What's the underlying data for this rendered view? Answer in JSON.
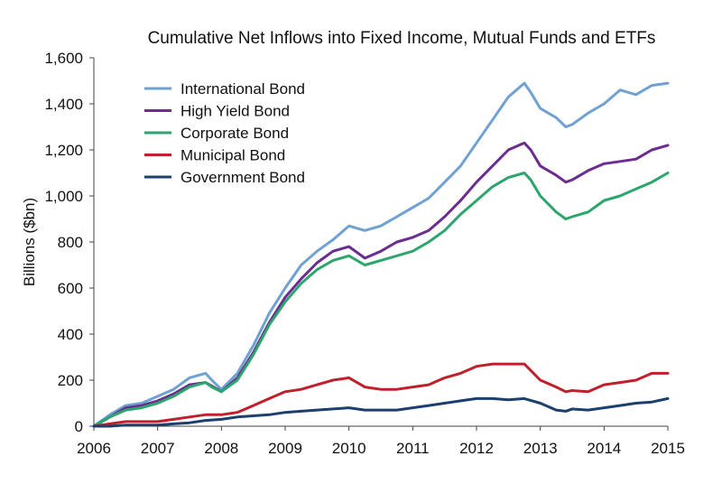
{
  "chart_data": {
    "type": "line",
    "title": "Cumulative Net Inflows into Fixed Income, Mutual Funds and ETFs",
    "xlabel": "",
    "ylabel": "Billions ($bn)",
    "xlim": [
      2006,
      2015
    ],
    "ylim": [
      0,
      1600
    ],
    "x_ticks": [
      2006,
      2007,
      2008,
      2009,
      2010,
      2011,
      2012,
      2013,
      2014,
      2015
    ],
    "y_ticks": [
      0,
      200,
      400,
      600,
      800,
      1000,
      1200,
      1400,
      1600
    ],
    "y_tick_labels": [
      "0",
      "200",
      "400",
      "600",
      "800",
      "1,000",
      "1,200",
      "1,400",
      "1,600"
    ],
    "grid": false,
    "legend_position": "top-left",
    "series": [
      {
        "name": "International Bond",
        "color": "#6fa1d3",
        "points": [
          [
            2006.0,
            0
          ],
          [
            2006.25,
            50
          ],
          [
            2006.5,
            90
          ],
          [
            2006.75,
            100
          ],
          [
            2007.0,
            130
          ],
          [
            2007.25,
            160
          ],
          [
            2007.5,
            210
          ],
          [
            2007.75,
            230
          ],
          [
            2007.85,
            200
          ],
          [
            2008.0,
            160
          ],
          [
            2008.25,
            230
          ],
          [
            2008.5,
            350
          ],
          [
            2008.75,
            490
          ],
          [
            2009.0,
            600
          ],
          [
            2009.25,
            700
          ],
          [
            2009.5,
            760
          ],
          [
            2009.75,
            810
          ],
          [
            2010.0,
            870
          ],
          [
            2010.25,
            850
          ],
          [
            2010.5,
            870
          ],
          [
            2010.75,
            910
          ],
          [
            2011.0,
            950
          ],
          [
            2011.25,
            990
          ],
          [
            2011.5,
            1060
          ],
          [
            2011.75,
            1130
          ],
          [
            2012.0,
            1230
          ],
          [
            2012.25,
            1330
          ],
          [
            2012.5,
            1430
          ],
          [
            2012.75,
            1490
          ],
          [
            2012.85,
            1450
          ],
          [
            2013.0,
            1380
          ],
          [
            2013.25,
            1340
          ],
          [
            2013.4,
            1300
          ],
          [
            2013.5,
            1310
          ],
          [
            2013.75,
            1360
          ],
          [
            2014.0,
            1400
          ],
          [
            2014.25,
            1460
          ],
          [
            2014.5,
            1440
          ],
          [
            2014.75,
            1480
          ],
          [
            2015.0,
            1490
          ]
        ]
      },
      {
        "name": "High Yield Bond",
        "color": "#6b2d8f",
        "points": [
          [
            2006.0,
            0
          ],
          [
            2006.25,
            40
          ],
          [
            2006.5,
            80
          ],
          [
            2006.75,
            90
          ],
          [
            2007.0,
            110
          ],
          [
            2007.25,
            140
          ],
          [
            2007.5,
            180
          ],
          [
            2007.75,
            190
          ],
          [
            2007.85,
            175
          ],
          [
            2008.0,
            150
          ],
          [
            2008.25,
            210
          ],
          [
            2008.5,
            320
          ],
          [
            2008.75,
            450
          ],
          [
            2009.0,
            560
          ],
          [
            2009.25,
            640
          ],
          [
            2009.5,
            710
          ],
          [
            2009.75,
            760
          ],
          [
            2010.0,
            780
          ],
          [
            2010.25,
            730
          ],
          [
            2010.5,
            760
          ],
          [
            2010.75,
            800
          ],
          [
            2011.0,
            820
          ],
          [
            2011.25,
            850
          ],
          [
            2011.5,
            910
          ],
          [
            2011.75,
            980
          ],
          [
            2012.0,
            1060
          ],
          [
            2012.25,
            1130
          ],
          [
            2012.5,
            1200
          ],
          [
            2012.75,
            1230
          ],
          [
            2012.85,
            1200
          ],
          [
            2013.0,
            1130
          ],
          [
            2013.25,
            1090
          ],
          [
            2013.4,
            1060
          ],
          [
            2013.5,
            1070
          ],
          [
            2013.75,
            1110
          ],
          [
            2014.0,
            1140
          ],
          [
            2014.25,
            1150
          ],
          [
            2014.5,
            1160
          ],
          [
            2014.75,
            1200
          ],
          [
            2015.0,
            1220
          ]
        ]
      },
      {
        "name": "Corporate Bond",
        "color": "#2ca66d",
        "points": [
          [
            2006.0,
            0
          ],
          [
            2006.25,
            40
          ],
          [
            2006.5,
            70
          ],
          [
            2006.75,
            80
          ],
          [
            2007.0,
            100
          ],
          [
            2007.25,
            130
          ],
          [
            2007.5,
            170
          ],
          [
            2007.75,
            190
          ],
          [
            2007.85,
            170
          ],
          [
            2008.0,
            150
          ],
          [
            2008.25,
            200
          ],
          [
            2008.5,
            310
          ],
          [
            2008.75,
            440
          ],
          [
            2009.0,
            540
          ],
          [
            2009.25,
            620
          ],
          [
            2009.5,
            680
          ],
          [
            2009.75,
            720
          ],
          [
            2010.0,
            740
          ],
          [
            2010.25,
            700
          ],
          [
            2010.5,
            720
          ],
          [
            2010.75,
            740
          ],
          [
            2011.0,
            760
          ],
          [
            2011.25,
            800
          ],
          [
            2011.5,
            850
          ],
          [
            2011.75,
            920
          ],
          [
            2012.0,
            980
          ],
          [
            2012.25,
            1040
          ],
          [
            2012.5,
            1080
          ],
          [
            2012.75,
            1100
          ],
          [
            2012.85,
            1070
          ],
          [
            2013.0,
            1000
          ],
          [
            2013.25,
            930
          ],
          [
            2013.4,
            900
          ],
          [
            2013.5,
            910
          ],
          [
            2013.75,
            930
          ],
          [
            2014.0,
            980
          ],
          [
            2014.25,
            1000
          ],
          [
            2014.5,
            1030
          ],
          [
            2014.75,
            1060
          ],
          [
            2015.0,
            1100
          ]
        ]
      },
      {
        "name": "Municipal Bond",
        "color": "#c0202b",
        "points": [
          [
            2006.0,
            0
          ],
          [
            2006.25,
            10
          ],
          [
            2006.5,
            20
          ],
          [
            2006.75,
            20
          ],
          [
            2007.0,
            20
          ],
          [
            2007.25,
            30
          ],
          [
            2007.5,
            40
          ],
          [
            2007.75,
            50
          ],
          [
            2008.0,
            50
          ],
          [
            2008.25,
            60
          ],
          [
            2008.5,
            90
          ],
          [
            2008.75,
            120
          ],
          [
            2009.0,
            150
          ],
          [
            2009.25,
            160
          ],
          [
            2009.5,
            180
          ],
          [
            2009.75,
            200
          ],
          [
            2010.0,
            210
          ],
          [
            2010.25,
            170
          ],
          [
            2010.5,
            160
          ],
          [
            2010.75,
            160
          ],
          [
            2011.0,
            170
          ],
          [
            2011.25,
            180
          ],
          [
            2011.5,
            210
          ],
          [
            2011.75,
            230
          ],
          [
            2012.0,
            260
          ],
          [
            2012.25,
            270
          ],
          [
            2012.5,
            270
          ],
          [
            2012.75,
            270
          ],
          [
            2013.0,
            200
          ],
          [
            2013.25,
            170
          ],
          [
            2013.4,
            150
          ],
          [
            2013.5,
            155
          ],
          [
            2013.75,
            150
          ],
          [
            2014.0,
            180
          ],
          [
            2014.25,
            190
          ],
          [
            2014.5,
            200
          ],
          [
            2014.75,
            230
          ],
          [
            2015.0,
            230
          ]
        ]
      },
      {
        "name": "Government Bond",
        "color": "#1b3f6e",
        "points": [
          [
            2006.0,
            0
          ],
          [
            2006.25,
            0
          ],
          [
            2006.5,
            5
          ],
          [
            2006.75,
            5
          ],
          [
            2007.0,
            5
          ],
          [
            2007.25,
            10
          ],
          [
            2007.5,
            15
          ],
          [
            2007.75,
            25
          ],
          [
            2008.0,
            30
          ],
          [
            2008.25,
            40
          ],
          [
            2008.5,
            45
          ],
          [
            2008.75,
            50
          ],
          [
            2009.0,
            60
          ],
          [
            2009.25,
            65
          ],
          [
            2009.5,
            70
          ],
          [
            2009.75,
            75
          ],
          [
            2010.0,
            80
          ],
          [
            2010.25,
            70
          ],
          [
            2010.5,
            70
          ],
          [
            2010.75,
            70
          ],
          [
            2011.0,
            80
          ],
          [
            2011.25,
            90
          ],
          [
            2011.5,
            100
          ],
          [
            2011.75,
            110
          ],
          [
            2012.0,
            120
          ],
          [
            2012.25,
            120
          ],
          [
            2012.5,
            115
          ],
          [
            2012.75,
            120
          ],
          [
            2013.0,
            100
          ],
          [
            2013.25,
            70
          ],
          [
            2013.4,
            65
          ],
          [
            2013.5,
            75
          ],
          [
            2013.75,
            70
          ],
          [
            2014.0,
            80
          ],
          [
            2014.25,
            90
          ],
          [
            2014.5,
            100
          ],
          [
            2014.75,
            105
          ],
          [
            2015.0,
            120
          ]
        ]
      }
    ]
  }
}
